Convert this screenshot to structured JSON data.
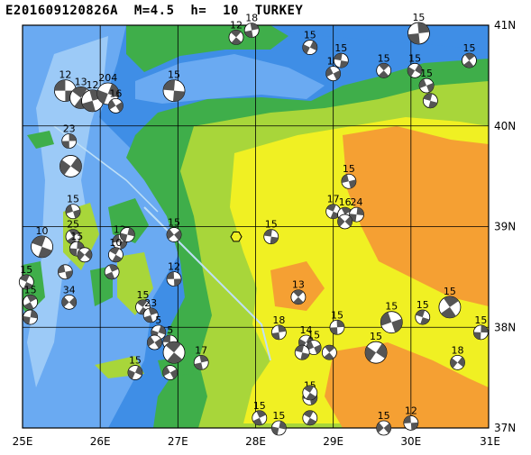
{
  "title": "E201609120826A  M=4.5  h=  10  TURKEY",
  "map": {
    "region": "TURKEY",
    "lon_range": [
      25,
      31
    ],
    "lat_range": [
      37,
      41
    ],
    "lon_labels": [
      "25E",
      "26E",
      "27E",
      "28E",
      "29E",
      "30E",
      "31E"
    ],
    "lat_labels": [
      "41N",
      "40N",
      "39N",
      "38N",
      "37N"
    ],
    "colors": {
      "deep_sea": "#3f8ee6",
      "shelf_sea": "#6aaaf2",
      "shallow_sea": "#9ccaf7",
      "lowland": "#3fae4a",
      "hills": "#a8d63a",
      "upland": "#f0f023",
      "plateau": "#f5a033",
      "grid": "#000000"
    },
    "event_marker": {
      "lon": 27.75,
      "lat": 38.9,
      "shape": "hexagon",
      "color": "#f0f023"
    },
    "mechanisms": [
      {
        "lon": 25.55,
        "lat": 40.35,
        "mag": "12",
        "size": "large"
      },
      {
        "lon": 25.75,
        "lat": 40.28,
        "mag": "13",
        "size": "large"
      },
      {
        "lon": 25.9,
        "lat": 40.25,
        "mag": "12",
        "size": "large"
      },
      {
        "lon": 26.1,
        "lat": 40.32,
        "mag": "204",
        "size": "large"
      },
      {
        "lon": 26.2,
        "lat": 40.2,
        "mag": "16",
        "size": "small"
      },
      {
        "lon": 26.95,
        "lat": 40.35,
        "mag": "15",
        "size": "large"
      },
      {
        "lon": 27.75,
        "lat": 40.88,
        "mag": "12",
        "size": "small"
      },
      {
        "lon": 27.95,
        "lat": 40.95,
        "mag": "18",
        "size": "small"
      },
      {
        "lon": 28.7,
        "lat": 40.78,
        "mag": "15",
        "size": "small"
      },
      {
        "lon": 29.0,
        "lat": 40.52,
        "mag": "14",
        "size": "small"
      },
      {
        "lon": 29.1,
        "lat": 40.65,
        "mag": "15",
        "size": "small"
      },
      {
        "lon": 29.65,
        "lat": 40.55,
        "mag": "15",
        "size": "small"
      },
      {
        "lon": 30.1,
        "lat": 40.92,
        "mag": "15",
        "size": "large"
      },
      {
        "lon": 30.05,
        "lat": 40.55,
        "mag": "15",
        "size": "small"
      },
      {
        "lon": 30.2,
        "lat": 40.4,
        "mag": "15",
        "size": "small"
      },
      {
        "lon": 30.25,
        "lat": 40.25,
        "mag": "",
        "size": "small"
      },
      {
        "lon": 30.75,
        "lat": 40.65,
        "mag": "15",
        "size": "small"
      },
      {
        "lon": 25.6,
        "lat": 39.85,
        "mag": "23",
        "size": "small"
      },
      {
        "lon": 25.62,
        "lat": 39.6,
        "mag": "",
        "size": "large"
      },
      {
        "lon": 25.65,
        "lat": 39.15,
        "mag": "15",
        "size": "small"
      },
      {
        "lon": 25.25,
        "lat": 38.8,
        "mag": "10",
        "size": "large"
      },
      {
        "lon": 25.65,
        "lat": 38.9,
        "mag": "25",
        "size": "small"
      },
      {
        "lon": 25.7,
        "lat": 38.78,
        "mag": "15",
        "size": "small"
      },
      {
        "lon": 25.8,
        "lat": 38.72,
        "mag": "",
        "size": "small"
      },
      {
        "lon": 25.55,
        "lat": 38.55,
        "mag": "",
        "size": "small"
      },
      {
        "lon": 25.05,
        "lat": 38.45,
        "mag": "15",
        "size": "small"
      },
      {
        "lon": 25.1,
        "lat": 38.25,
        "mag": "15",
        "size": "small"
      },
      {
        "lon": 25.1,
        "lat": 38.1,
        "mag": "",
        "size": "small"
      },
      {
        "lon": 25.6,
        "lat": 38.25,
        "mag": "34",
        "size": "small"
      },
      {
        "lon": 26.25,
        "lat": 38.85,
        "mag": "12",
        "size": "small"
      },
      {
        "lon": 26.2,
        "lat": 38.72,
        "mag": "10",
        "size": "small"
      },
      {
        "lon": 26.15,
        "lat": 38.55,
        "mag": "",
        "size": "small"
      },
      {
        "lon": 26.35,
        "lat": 38.92,
        "mag": "",
        "size": "small"
      },
      {
        "lon": 26.95,
        "lat": 38.92,
        "mag": "15",
        "size": "small"
      },
      {
        "lon": 26.95,
        "lat": 38.48,
        "mag": "12",
        "size": "small"
      },
      {
        "lon": 26.55,
        "lat": 38.2,
        "mag": "15",
        "size": "small"
      },
      {
        "lon": 26.65,
        "lat": 38.12,
        "mag": "23",
        "size": "small"
      },
      {
        "lon": 26.75,
        "lat": 37.95,
        "mag": "5",
        "size": "small"
      },
      {
        "lon": 26.7,
        "lat": 37.85,
        "mag": "",
        "size": "small"
      },
      {
        "lon": 26.9,
        "lat": 37.85,
        "mag": "5",
        "size": "small"
      },
      {
        "lon": 26.95,
        "lat": 37.75,
        "mag": "",
        "size": "large"
      },
      {
        "lon": 27.3,
        "lat": 37.65,
        "mag": "17",
        "size": "small"
      },
      {
        "lon": 26.45,
        "lat": 37.55,
        "mag": "15",
        "size": "small"
      },
      {
        "lon": 26.9,
        "lat": 37.55,
        "mag": "",
        "size": "small"
      },
      {
        "lon": 28.2,
        "lat": 38.9,
        "mag": "15",
        "size": "small"
      },
      {
        "lon": 28.55,
        "lat": 38.3,
        "mag": "13",
        "size": "small"
      },
      {
        "lon": 28.3,
        "lat": 37.95,
        "mag": "18",
        "size": "small"
      },
      {
        "lon": 28.65,
        "lat": 37.85,
        "mag": "14",
        "size": "small"
      },
      {
        "lon": 28.75,
        "lat": 37.8,
        "mag": "15",
        "size": "small"
      },
      {
        "lon": 28.6,
        "lat": 37.75,
        "mag": "",
        "size": "small"
      },
      {
        "lon": 28.95,
        "lat": 37.75,
        "mag": "",
        "size": "small"
      },
      {
        "lon": 29.05,
        "lat": 38.0,
        "mag": "15",
        "size": "small"
      },
      {
        "lon": 29.55,
        "lat": 37.75,
        "mag": "15",
        "size": "large"
      },
      {
        "lon": 29.75,
        "lat": 38.05,
        "mag": "15",
        "size": "large"
      },
      {
        "lon": 30.15,
        "lat": 38.1,
        "mag": "15",
        "size": "small"
      },
      {
        "lon": 30.5,
        "lat": 38.2,
        "mag": "15",
        "size": "large"
      },
      {
        "lon": 30.9,
        "lat": 37.95,
        "mag": "15",
        "size": "small"
      },
      {
        "lon": 30.6,
        "lat": 37.65,
        "mag": "18",
        "size": "small"
      },
      {
        "lon": 29.2,
        "lat": 39.45,
        "mag": "15",
        "size": "small"
      },
      {
        "lon": 29.0,
        "lat": 39.15,
        "mag": "17",
        "size": "small"
      },
      {
        "lon": 29.15,
        "lat": 39.12,
        "mag": "16",
        "size": "small"
      },
      {
        "lon": 29.3,
        "lat": 39.12,
        "mag": "24",
        "size": "small"
      },
      {
        "lon": 29.15,
        "lat": 39.05,
        "mag": "",
        "size": "small"
      },
      {
        "lon": 28.7,
        "lat": 37.3,
        "mag": "15",
        "size": "small"
      },
      {
        "lon": 28.7,
        "lat": 37.1,
        "mag": "",
        "size": "small"
      },
      {
        "lon": 28.05,
        "lat": 37.1,
        "mag": "15",
        "size": "small"
      },
      {
        "lon": 28.3,
        "lat": 37.0,
        "mag": "15",
        "size": "small"
      },
      {
        "lon": 29.65,
        "lat": 37.0,
        "mag": "15",
        "size": "small"
      },
      {
        "lon": 30.0,
        "lat": 37.05,
        "mag": "12",
        "size": "small"
      },
      {
        "lon": 28.7,
        "lat": 37.35,
        "mag": "",
        "size": "small"
      }
    ]
  }
}
